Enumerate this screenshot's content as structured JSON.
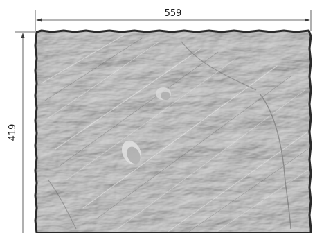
{
  "dimensions": {
    "width_label": "559",
    "height_label": "419"
  },
  "colors": {
    "slate_base": "#a9a9a9",
    "slate_light": "#d9d9d9",
    "slate_dark": "#5a5a5a",
    "edge": "#2a2a2a",
    "dimension_line": "#3a3a3a"
  }
}
